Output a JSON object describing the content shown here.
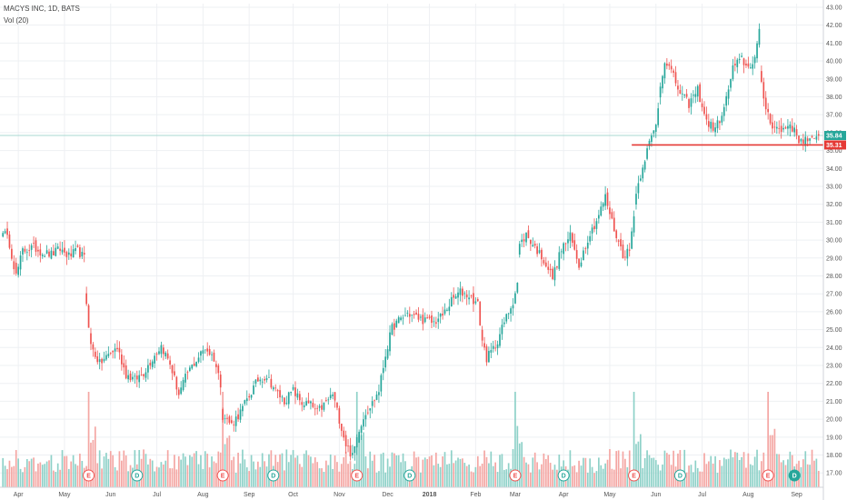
{
  "header": {
    "symbol_line": "MACYS INC, 1D, BATS",
    "volume_line": "Vol (20)"
  },
  "colors": {
    "up": "#26a69a",
    "down": "#ef5350",
    "up_vol": "#8ed1c8",
    "down_vol": "#f4a6a3",
    "level_line": "#e53935",
    "grid": "#eef0f3"
  },
  "chart_data": {
    "type": "candlestick",
    "y_axis": {
      "min": 16.2,
      "max": 43.2,
      "ticks": [
        "17.00",
        "18.00",
        "19.00",
        "20.00",
        "21.00",
        "22.00",
        "23.00",
        "24.00",
        "25.00",
        "26.00",
        "27.00",
        "28.00",
        "29.00",
        "30.00",
        "31.00",
        "32.00",
        "33.00",
        "34.00",
        "35.00",
        "36.00",
        "37.00",
        "38.00",
        "39.00",
        "40.00",
        "41.00",
        "42.00",
        "43.00"
      ]
    },
    "x_axis": {
      "labels": [
        {
          "label": "Apr",
          "session": 7
        },
        {
          "label": "May",
          "session": 28
        },
        {
          "label": "Jun",
          "session": 49
        },
        {
          "label": "Jul",
          "session": 70
        },
        {
          "label": "Aug",
          "session": 91
        },
        {
          "label": "Sep",
          "session": 112
        },
        {
          "label": "Oct",
          "session": 132
        },
        {
          "label": "Nov",
          "session": 153
        },
        {
          "label": "Dec",
          "session": 175
        },
        {
          "label": "2018",
          "session": 194
        },
        {
          "label": "Feb",
          "session": 215
        },
        {
          "label": "Mar",
          "session": 233
        },
        {
          "label": "Apr",
          "session": 255
        },
        {
          "label": "May",
          "session": 276
        },
        {
          "label": "Jun",
          "session": 297
        },
        {
          "label": "Jul",
          "session": 318
        },
        {
          "label": "Aug",
          "session": 339
        },
        {
          "label": "Sep",
          "session": 361
        }
      ]
    },
    "price_path": [
      [
        0,
        30.6
      ],
      [
        3,
        29.8
      ],
      [
        6,
        28.0
      ],
      [
        9,
        29.4
      ],
      [
        14,
        29.6
      ],
      [
        18,
        29.3
      ],
      [
        22,
        29.2
      ],
      [
        26,
        29.5
      ],
      [
        30,
        29.1
      ],
      [
        34,
        29.4
      ],
      [
        37,
        29.0
      ],
      [
        38,
        26.5
      ],
      [
        40,
        24.1
      ],
      [
        44,
        23.1
      ],
      [
        48,
        23.6
      ],
      [
        52,
        24.0
      ],
      [
        56,
        22.5
      ],
      [
        60,
        22.2
      ],
      [
        64,
        22.6
      ],
      [
        68,
        23.4
      ],
      [
        72,
        24.1
      ],
      [
        76,
        23.1
      ],
      [
        80,
        21.4
      ],
      [
        84,
        22.6
      ],
      [
        88,
        23.3
      ],
      [
        92,
        24.0
      ],
      [
        96,
        23.4
      ],
      [
        99,
        22.0
      ],
      [
        100,
        20.2
      ],
      [
        104,
        19.7
      ],
      [
        108,
        20.4
      ],
      [
        112,
        21.3
      ],
      [
        116,
        22.2
      ],
      [
        120,
        22.4
      ],
      [
        124,
        21.6
      ],
      [
        128,
        21.0
      ],
      [
        132,
        21.6
      ],
      [
        136,
        20.9
      ],
      [
        140,
        20.8
      ],
      [
        143,
        20.4
      ],
      [
        146,
        20.8
      ],
      [
        150,
        21.4
      ],
      [
        153,
        20.0
      ],
      [
        156,
        18.6
      ],
      [
        159,
        17.9
      ],
      [
        162,
        19.5
      ],
      [
        165,
        20.4
      ],
      [
        168,
        20.9
      ],
      [
        171,
        21.6
      ],
      [
        174,
        23.6
      ],
      [
        177,
        25.1
      ],
      [
        180,
        25.5
      ],
      [
        184,
        25.9
      ],
      [
        188,
        25.7
      ],
      [
        192,
        25.5
      ],
      [
        196,
        25.4
      ],
      [
        200,
        25.8
      ],
      [
        204,
        26.6
      ],
      [
        208,
        27.1
      ],
      [
        212,
        26.9
      ],
      [
        216,
        26.4
      ],
      [
        218,
        24.4
      ],
      [
        220,
        23.4
      ],
      [
        224,
        24.1
      ],
      [
        228,
        25.4
      ],
      [
        232,
        26.6
      ],
      [
        234,
        27.6
      ],
      [
        235,
        29.7
      ],
      [
        238,
        30.3
      ],
      [
        242,
        29.6
      ],
      [
        246,
        28.9
      ],
      [
        250,
        27.9
      ],
      [
        254,
        29.5
      ],
      [
        258,
        30.2
      ],
      [
        262,
        28.6
      ],
      [
        266,
        30.1
      ],
      [
        270,
        31.1
      ],
      [
        274,
        32.4
      ],
      [
        278,
        30.6
      ],
      [
        282,
        29.2
      ],
      [
        285,
        29.4
      ],
      [
        288,
        32.6
      ],
      [
        291,
        34.2
      ],
      [
        294,
        35.4
      ],
      [
        297,
        36.4
      ],
      [
        299,
        38.6
      ],
      [
        301,
        40.1
      ],
      [
        304,
        39.4
      ],
      [
        308,
        38.2
      ],
      [
        312,
        37.6
      ],
      [
        316,
        38.4
      ],
      [
        320,
        36.6
      ],
      [
        324,
        36.2
      ],
      [
        328,
        37.3
      ],
      [
        332,
        39.6
      ],
      [
        336,
        40.1
      ],
      [
        339,
        39.6
      ],
      [
        342,
        40.2
      ],
      [
        344,
        41.6
      ],
      [
        345,
        38.6
      ],
      [
        347,
        37.4
      ],
      [
        350,
        36.4
      ],
      [
        354,
        36.1
      ],
      [
        358,
        36.5
      ],
      [
        362,
        35.6
      ],
      [
        366,
        35.6
      ],
      [
        369,
        35.5
      ],
      [
        371,
        35.84
      ]
    ],
    "last_price": 35.84,
    "horizontal_level": 35.31,
    "horizontal_level_start_session": 286,
    "earnings_sessions": [
      39,
      100,
      161,
      233,
      287,
      348
    ],
    "dividend_sessions": [
      61,
      123,
      185,
      255,
      308
    ],
    "earnings_label": "E",
    "dividend_label": "D",
    "price_tag_last": "35.84",
    "price_tag_level": "35.31"
  }
}
